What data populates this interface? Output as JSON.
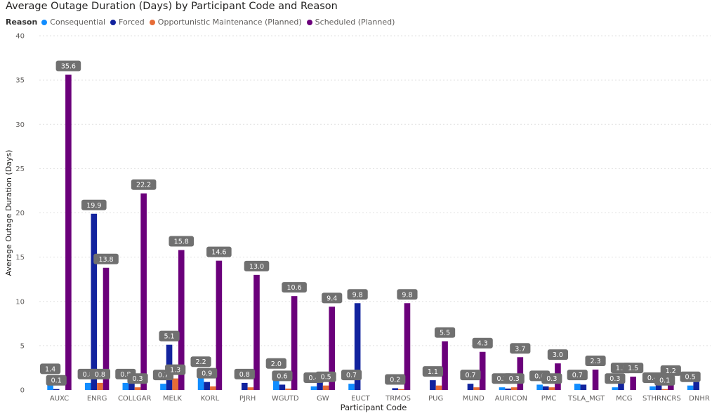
{
  "chart_data": {
    "type": "bar",
    "title": "Average Outage Duration (Days) by Participant Code and Reason",
    "legend_title": "Reason",
    "xlabel": "Participant Code",
    "ylabel": "Average Outage Duration (Days)",
    "ylim": [
      0,
      40
    ],
    "yticks": [
      0,
      5,
      10,
      15,
      20,
      25,
      30,
      35,
      40
    ],
    "grid": true,
    "legend_position": "top-left",
    "categories": [
      "AUXC",
      "ENRG",
      "COLLGAR",
      "MELK",
      "KORL",
      "PJRH",
      "WGUTD",
      "GW",
      "EUCT",
      "TRMOS",
      "PUG",
      "MUND",
      "AURICON",
      "PMC",
      "TSLA_MGT",
      "MCG",
      "STHRNCRS",
      "DNHR"
    ],
    "series": [
      {
        "name": "Consequential",
        "color": "#118DFF",
        "values": [
          1.4,
          0.8,
          0.8,
          0.7,
          2.2,
          null,
          2.0,
          0.4,
          0.7,
          null,
          null,
          null,
          0.3,
          0.6,
          0.7,
          0.3,
          0.4,
          0.5
        ]
      },
      {
        "name": "Forced",
        "color": "#12239E",
        "values": [
          0.1,
          19.9,
          1.3,
          5.1,
          0.9,
          0.8,
          0.6,
          1.1,
          9.8,
          0.2,
          1.1,
          0.7,
          0.15,
          0.4,
          0.6,
          1.5,
          0.6,
          0.9
        ]
      },
      {
        "name": "Opportunistic Maintenance (Planned)",
        "color": "#E66C37",
        "values": [
          null,
          0.8,
          0.3,
          1.3,
          0.4,
          0.3,
          0.15,
          0.5,
          null,
          0.1,
          0.5,
          0.3,
          0.3,
          0.3,
          null,
          null,
          0.1,
          null
        ]
      },
      {
        "name": "Scheduled (Planned)",
        "color": "#6B007B",
        "values": [
          35.6,
          13.8,
          22.2,
          15.8,
          14.6,
          13.0,
          10.6,
          9.4,
          null,
          9.8,
          5.5,
          4.3,
          3.7,
          3.0,
          2.3,
          1.5,
          1.2,
          null
        ]
      }
    ],
    "data_labels": [
      {
        "category": "AUXC",
        "series": "Consequential",
        "text": "1.4"
      },
      {
        "category": "AUXC",
        "series": "Forced",
        "text": "0.1"
      },
      {
        "category": "AUXC",
        "series": "Scheduled (Planned)",
        "text": "35.6"
      },
      {
        "category": "ENRG",
        "series": "Consequential",
        "text": "0.8"
      },
      {
        "category": "ENRG",
        "series": "Forced",
        "text": "19.9"
      },
      {
        "category": "ENRG",
        "series": "Opportunistic Maintenance (Planned)",
        "text": "0.8"
      },
      {
        "category": "ENRG",
        "series": "Scheduled (Planned)",
        "text": "13.8"
      },
      {
        "category": "COLLGAR",
        "series": "Consequential",
        "text": "0.8"
      },
      {
        "category": "COLLGAR",
        "series": "Opportunistic Maintenance (Planned)",
        "text": "0.3"
      },
      {
        "category": "COLLGAR",
        "series": "Scheduled (Planned)",
        "text": "22.2"
      },
      {
        "category": "MELK",
        "series": "Consequential",
        "text": "0.7"
      },
      {
        "category": "MELK",
        "series": "Forced",
        "text": "5.1"
      },
      {
        "category": "MELK",
        "series": "Opportunistic Maintenance (Planned)",
        "text": "1.3"
      },
      {
        "category": "MELK",
        "series": "Scheduled (Planned)",
        "text": "15.8"
      },
      {
        "category": "KORL",
        "series": "Consequential",
        "text": "2.2"
      },
      {
        "category": "KORL",
        "series": "Forced",
        "text": "0.9"
      },
      {
        "category": "KORL",
        "series": "Scheduled (Planned)",
        "text": "14.6"
      },
      {
        "category": "PJRH",
        "series": "Forced",
        "text": "0.8"
      },
      {
        "category": "PJRH",
        "series": "Scheduled (Planned)",
        "text": "13.0"
      },
      {
        "category": "WGUTD",
        "series": "Consequential",
        "text": "2.0"
      },
      {
        "category": "WGUTD",
        "series": "Forced",
        "text": "0.6"
      },
      {
        "category": "WGUTD",
        "series": "Scheduled (Planned)",
        "text": "10.6"
      },
      {
        "category": "GW",
        "series": "Consequential",
        "text": "0.4"
      },
      {
        "category": "GW",
        "series": "Opportunistic Maintenance (Planned)",
        "text": "0.5"
      },
      {
        "category": "GW",
        "series": "Scheduled (Planned)",
        "text": "9.4"
      },
      {
        "category": "EUCT",
        "series": "Consequential",
        "text": "0.7"
      },
      {
        "category": "EUCT",
        "series": "Forced",
        "text": "9.8"
      },
      {
        "category": "TRMOS",
        "series": "Forced",
        "text": "0.2"
      },
      {
        "category": "TRMOS",
        "series": "Scheduled (Planned)",
        "text": "9.8"
      },
      {
        "category": "PUG",
        "series": "Forced",
        "text": "1.1"
      },
      {
        "category": "PUG",
        "series": "Scheduled (Planned)",
        "text": "5.5"
      },
      {
        "category": "MUND",
        "series": "Forced",
        "text": "0.7"
      },
      {
        "category": "MUND",
        "series": "Scheduled (Planned)",
        "text": "4.3"
      },
      {
        "category": "AURICON",
        "series": "Consequential",
        "text": "0.3"
      },
      {
        "category": "AURICON",
        "series": "Opportunistic Maintenance (Planned)",
        "text": "0.3"
      },
      {
        "category": "AURICON",
        "series": "Scheduled (Planned)",
        "text": "3.7"
      },
      {
        "category": "PMC",
        "series": "Consequential",
        "text": "0.6"
      },
      {
        "category": "PMC",
        "series": "Opportunistic Maintenance (Planned)",
        "text": "0.3"
      },
      {
        "category": "PMC",
        "series": "Scheduled (Planned)",
        "text": "3.0"
      },
      {
        "category": "TSLA_MGT",
        "series": "Consequential",
        "text": "0.7"
      },
      {
        "category": "TSLA_MGT",
        "series": "Scheduled (Planned)",
        "text": "2.3"
      },
      {
        "category": "MCG",
        "series": "Consequential",
        "text": "0.3"
      },
      {
        "category": "MCG",
        "series": "Forced",
        "text": "1.5"
      },
      {
        "category": "MCG",
        "series": "Scheduled (Planned)",
        "text": "1.5"
      },
      {
        "category": "STHRNCRS",
        "series": "Consequential",
        "text": "0.4"
      },
      {
        "category": "STHRNCRS",
        "series": "Opportunistic Maintenance (Planned)",
        "text": "0.1"
      },
      {
        "category": "STHRNCRS",
        "series": "Scheduled (Planned)",
        "text": "1.2"
      },
      {
        "category": "DNHR",
        "series": "Consequential",
        "text": "0.5"
      }
    ]
  }
}
